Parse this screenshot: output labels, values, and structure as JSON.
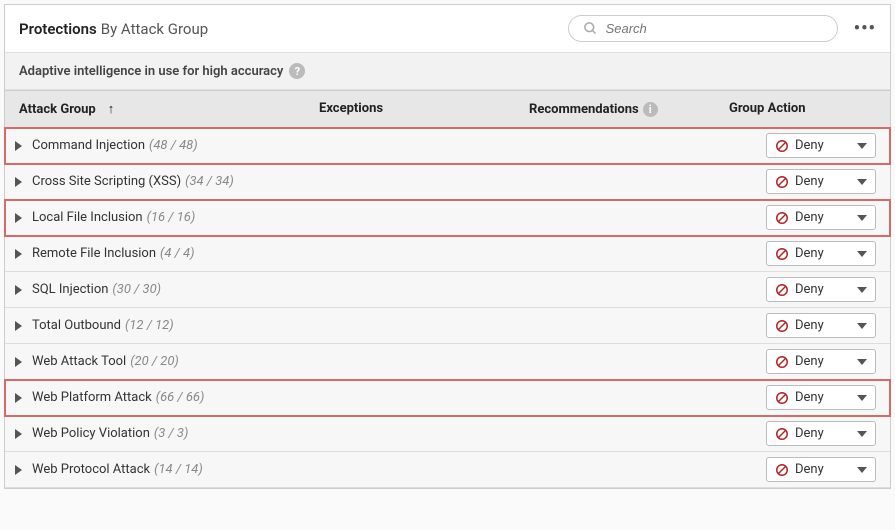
{
  "header": {
    "title": "Protections",
    "subtitle": "By Attack Group",
    "search_placeholder": "Search"
  },
  "subheader": {
    "text": "Adaptive intelligence in use for high accuracy"
  },
  "columns": {
    "attack_group": "Attack Group",
    "exceptions": "Exceptions",
    "recommendations": "Recommendations",
    "group_action": "Group Action"
  },
  "action_label": "Deny",
  "highlight_color": "#d46a6a",
  "deny_icon_color": "#b22222",
  "rows": [
    {
      "name": "Command Injection",
      "count": "(48 / 48)",
      "highlighted": true
    },
    {
      "name": "Cross Site Scripting (XSS)",
      "count": "(34 / 34)",
      "highlighted": false
    },
    {
      "name": "Local File Inclusion",
      "count": "(16 / 16)",
      "highlighted": true
    },
    {
      "name": "Remote File Inclusion",
      "count": "(4 / 4)",
      "highlighted": false
    },
    {
      "name": "SQL Injection",
      "count": "(30 / 30)",
      "highlighted": false
    },
    {
      "name": "Total Outbound",
      "count": "(12 / 12)",
      "highlighted": false
    },
    {
      "name": "Web Attack Tool",
      "count": "(20 / 20)",
      "highlighted": false
    },
    {
      "name": "Web Platform Attack",
      "count": "(66 / 66)",
      "highlighted": true
    },
    {
      "name": "Web Policy Violation",
      "count": "(3 / 3)",
      "highlighted": false
    },
    {
      "name": "Web Protocol Attack",
      "count": "(14 / 14)",
      "highlighted": false
    }
  ]
}
